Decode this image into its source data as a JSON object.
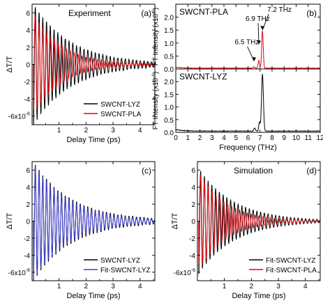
{
  "chart_data": [
    {
      "id": "a",
      "type": "line",
      "panel_label": "(a)",
      "title": "Experiment",
      "xlabel": "Delay Time (ps)",
      "ylabel": "ΔT/T",
      "xlim": [
        0.0,
        4.55
      ],
      "ylim": [
        -7,
        7
      ],
      "x_ticks": [
        "1",
        "2",
        "3",
        "4"
      ],
      "x_tick_values": [
        1,
        2,
        3,
        4
      ],
      "y_ticks": [
        "-6x10-6",
        "-4",
        "-2",
        "0",
        "2",
        "4",
        "6"
      ],
      "y_tick_values": [
        -6,
        -4,
        -2,
        0,
        2,
        4,
        6
      ],
      "legend_position": "bottom-right",
      "series": [
        {
          "name": "SWCNT-LYZ",
          "color": "#000000",
          "model": {
            "A": 7.0,
            "f_thz": 7.2,
            "t0": 0.05,
            "tau": 1.4,
            "phase": 0.0,
            "noise": 0.2
          }
        },
        {
          "name": "SWCNT-PLA",
          "color": "#e8000b",
          "model": {
            "A": 6.0,
            "f_thz": 6.9,
            "t0": 0.05,
            "tau": 1.0,
            "phase": 0.5,
            "noise": 0.15
          }
        }
      ]
    },
    {
      "id": "b_top",
      "type": "line",
      "panel_label": "(b)",
      "title": "SWCNT-PLA",
      "ylabel": "FT Intensity (x10-6)",
      "xlim": [
        0,
        12
      ],
      "ylim": [
        0,
        2.5
      ],
      "x_tick_values": [
        0,
        1,
        2,
        3,
        4,
        5,
        6,
        7,
        8,
        9,
        10,
        11,
        12
      ],
      "y_ticks": [
        "0.0",
        "0.5",
        "1.0",
        "1.5",
        "2.0"
      ],
      "y_tick_values": [
        0,
        0.5,
        1.0,
        1.5,
        2.0
      ],
      "annotations": [
        {
          "text": "7.2 THz",
          "x": 7.2,
          "y": 1.45
        },
        {
          "text": "6.9 THz",
          "x": 6.9,
          "y": 0.9
        },
        {
          "text": "6.5 THz",
          "x": 6.5,
          "y": 0.25
        }
      ],
      "series": [
        {
          "name": "SWCNT-PLA",
          "color": "#e8000b",
          "peaks": [
            {
              "f": 7.2,
              "h": 1.45,
              "w": 0.09
            },
            {
              "f": 6.9,
              "h": 0.3,
              "w": 0.08
            },
            {
              "f": 6.5,
              "h": 0.05,
              "w": 0.1
            }
          ],
          "baseline": 0.03
        }
      ]
    },
    {
      "id": "b_bottom",
      "type": "line",
      "title": "SWCNT-LYZ",
      "xlabel": "Frequency (THz)",
      "ylabel": "FT Intensity (x10-6)",
      "xlim": [
        0,
        12
      ],
      "ylim": [
        0,
        2.5
      ],
      "x_ticks": [
        "0",
        "1",
        "2",
        "3",
        "4",
        "5",
        "6",
        "7",
        "8",
        "9",
        "10",
        "11",
        "12"
      ],
      "x_tick_values": [
        0,
        1,
        2,
        3,
        4,
        5,
        6,
        7,
        8,
        9,
        10,
        11,
        12
      ],
      "y_ticks": [
        "0.0",
        "0.5",
        "1.0",
        "1.5",
        "2.0"
      ],
      "y_tick_values": [
        0,
        0.5,
        1.0,
        1.5,
        2.0
      ],
      "series": [
        {
          "name": "SWCNT-LYZ",
          "color": "#000000",
          "peaks": [
            {
              "f": 7.2,
              "h": 2.25,
              "w": 0.11
            },
            {
              "f": 6.95,
              "h": 0.35,
              "w": 0.08
            },
            {
              "f": 6.55,
              "h": 0.12,
              "w": 0.1
            }
          ],
          "baseline": 0.05
        }
      ]
    },
    {
      "id": "c",
      "type": "line",
      "panel_label": "(c)",
      "title": "",
      "xlabel": "Delay Time (ps)",
      "ylabel": "ΔT/T",
      "xlim": [
        0.0,
        4.55
      ],
      "ylim": [
        -7,
        7
      ],
      "x_ticks": [
        "1",
        "2",
        "3",
        "4"
      ],
      "x_tick_values": [
        1,
        2,
        3,
        4
      ],
      "y_ticks": [
        "-6x10-6",
        "-4",
        "-2",
        "0",
        "2",
        "4",
        "6"
      ],
      "y_tick_values": [
        -6,
        -4,
        -2,
        0,
        2,
        4,
        6
      ],
      "legend_position": "bottom-right",
      "series": [
        {
          "name": "SWCNT-LYZ",
          "color": "#000000",
          "model": {
            "A": 7.0,
            "f_thz": 7.2,
            "t0": 0.05,
            "tau": 1.4,
            "phase": 0.0,
            "noise": 0.2
          }
        },
        {
          "name": "Fit-SWCNT-LYZ",
          "color": "#3b3bd6",
          "model": {
            "A": 6.8,
            "f_thz": 7.2,
            "t0": 0.05,
            "tau": 1.3,
            "phase": 0.05,
            "noise": 0.0
          }
        }
      ]
    },
    {
      "id": "d",
      "type": "line",
      "panel_label": "(d)",
      "title": "Simulation",
      "xlabel": "Delay Time (ps)",
      "ylabel": "ΔT/T",
      "xlim": [
        0.0,
        4.55
      ],
      "ylim": [
        -7,
        7
      ],
      "x_ticks": [
        "1",
        "2",
        "3",
        "4"
      ],
      "x_tick_values": [
        1,
        2,
        3,
        4
      ],
      "y_ticks": [
        "-6x10-6",
        "-4",
        "-2",
        "0",
        "2",
        "4",
        "6"
      ],
      "y_tick_values": [
        -6,
        -4,
        -2,
        0,
        2,
        4,
        6
      ],
      "legend_position": "bottom-right",
      "series": [
        {
          "name": "Fit-SWCNT-LYZ",
          "color": "#000000",
          "model": {
            "A": 6.2,
            "f_thz": 7.2,
            "t0": 0.05,
            "tau": 1.3,
            "phase": 0.0,
            "noise": 0.0
          }
        },
        {
          "name": "Fit-SWCNT-PLA",
          "color": "#e8000b",
          "model": {
            "A": 5.8,
            "f_thz": 6.9,
            "t0": 0.05,
            "tau": 1.0,
            "phase": 0.5,
            "noise": 0.0
          }
        }
      ]
    }
  ]
}
